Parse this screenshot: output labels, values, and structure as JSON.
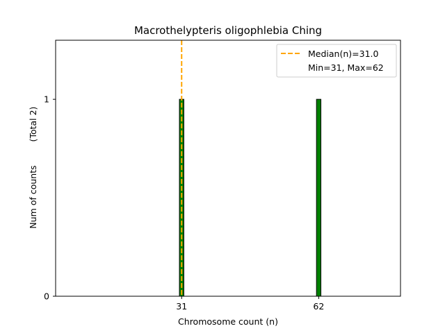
{
  "chart_data": {
    "type": "bar",
    "title": "Macrothelypteris oligophlebia Ching",
    "xlabel": "Chromosome count (n)",
    "ylabel": "Num of counts",
    "ylabel_note": "(Total 2)",
    "x": [
      31,
      62
    ],
    "values": [
      1,
      1
    ],
    "xlim": [
      2.5,
      80.5
    ],
    "ylim": [
      0,
      1.3
    ],
    "xticks": [
      31,
      62
    ],
    "yticks": [
      0,
      1
    ],
    "bar_width": 1,
    "bar_color": "#008000",
    "bar_edge_color": "#000000",
    "median": 31.0,
    "median_color": "#FFA500",
    "legend": {
      "placement": "top-right",
      "median_label": "Median(n)=31.0",
      "range_label": "Min=31, Max=62"
    },
    "grid": false
  }
}
